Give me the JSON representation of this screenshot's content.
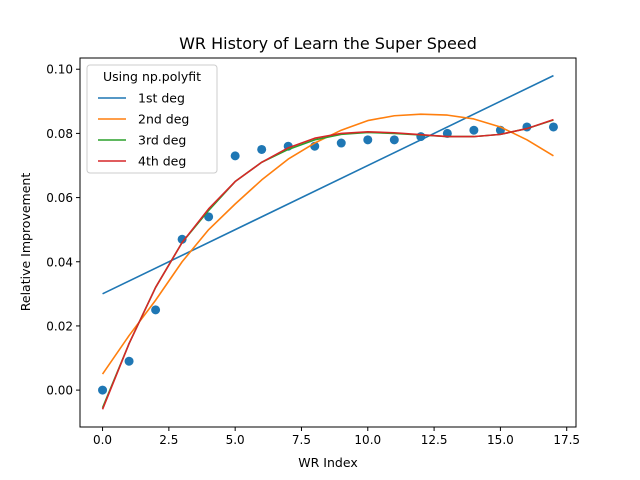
{
  "chart_data": {
    "type": "scatter",
    "title": "WR History of Learn the Super Speed",
    "xlabel": "WR Index",
    "ylabel": "Relative Improvement",
    "xlim": [
      -0.85,
      17.85
    ],
    "ylim": [
      -0.0115,
      0.1035
    ],
    "xticks": [
      0,
      2.5,
      5,
      7.5,
      10,
      12.5,
      15,
      17.5
    ],
    "xtick_labels": [
      "0.0",
      "2.5",
      "5.0",
      "7.5",
      "10.0",
      "12.5",
      "15.0",
      "17.5"
    ],
    "yticks": [
      0,
      0.02,
      0.04,
      0.06,
      0.08,
      0.1
    ],
    "ytick_labels": [
      "0.00",
      "0.02",
      "0.04",
      "0.06",
      "0.08",
      "0.10"
    ],
    "grid": false,
    "legend": {
      "title": "Using np.polyfit",
      "placement": "top-left"
    },
    "points": {
      "color": "#1f77b4",
      "x": [
        0,
        1,
        2,
        3,
        4,
        5,
        6,
        7,
        8,
        9,
        10,
        11,
        12,
        13,
        14,
        15,
        16,
        17
      ],
      "y": [
        0.0,
        0.009,
        0.025,
        0.047,
        0.054,
        0.073,
        0.075,
        0.076,
        0.076,
        0.077,
        0.078,
        0.078,
        0.079,
        0.08,
        0.081,
        0.081,
        0.082,
        0.082
      ]
    },
    "series": [
      {
        "name": "1st deg",
        "color": "#1f77b4",
        "x": [
          0,
          17
        ],
        "y": [
          0.03,
          0.098
        ]
      },
      {
        "name": "2nd deg",
        "color": "#ff7f0e",
        "x": [
          0,
          1,
          2,
          3,
          4,
          5,
          6,
          7,
          8,
          9,
          10,
          11,
          12,
          13,
          14,
          15,
          16,
          17
        ],
        "y": [
          0.005,
          0.017,
          0.028,
          0.04,
          0.05,
          0.058,
          0.0655,
          0.072,
          0.077,
          0.081,
          0.084,
          0.0855,
          0.086,
          0.0857,
          0.0845,
          0.082,
          0.078,
          0.073
        ]
      },
      {
        "name": "3rd deg",
        "color": "#2ca02c",
        "x": [
          0,
          1,
          2,
          3,
          4,
          5,
          6,
          7,
          8,
          9,
          10,
          11,
          12,
          13,
          14,
          15,
          16,
          17
        ],
        "y": [
          -0.0055,
          0.0145,
          0.032,
          0.046,
          0.056,
          0.065,
          0.071,
          0.075,
          0.078,
          0.0797,
          0.0803,
          0.08,
          0.0795,
          0.079,
          0.079,
          0.0797,
          0.0815,
          0.0842
        ]
      },
      {
        "name": "4th deg",
        "color": "#d62728",
        "x": [
          0,
          1,
          2,
          3,
          4,
          5,
          6,
          7,
          8,
          9,
          10,
          11,
          12,
          13,
          14,
          15,
          16,
          17
        ],
        "y": [
          -0.006,
          0.0145,
          0.032,
          0.046,
          0.0565,
          0.065,
          0.071,
          0.0755,
          0.0785,
          0.08,
          0.0805,
          0.0802,
          0.0796,
          0.079,
          0.079,
          0.0797,
          0.0815,
          0.0843
        ]
      }
    ]
  }
}
